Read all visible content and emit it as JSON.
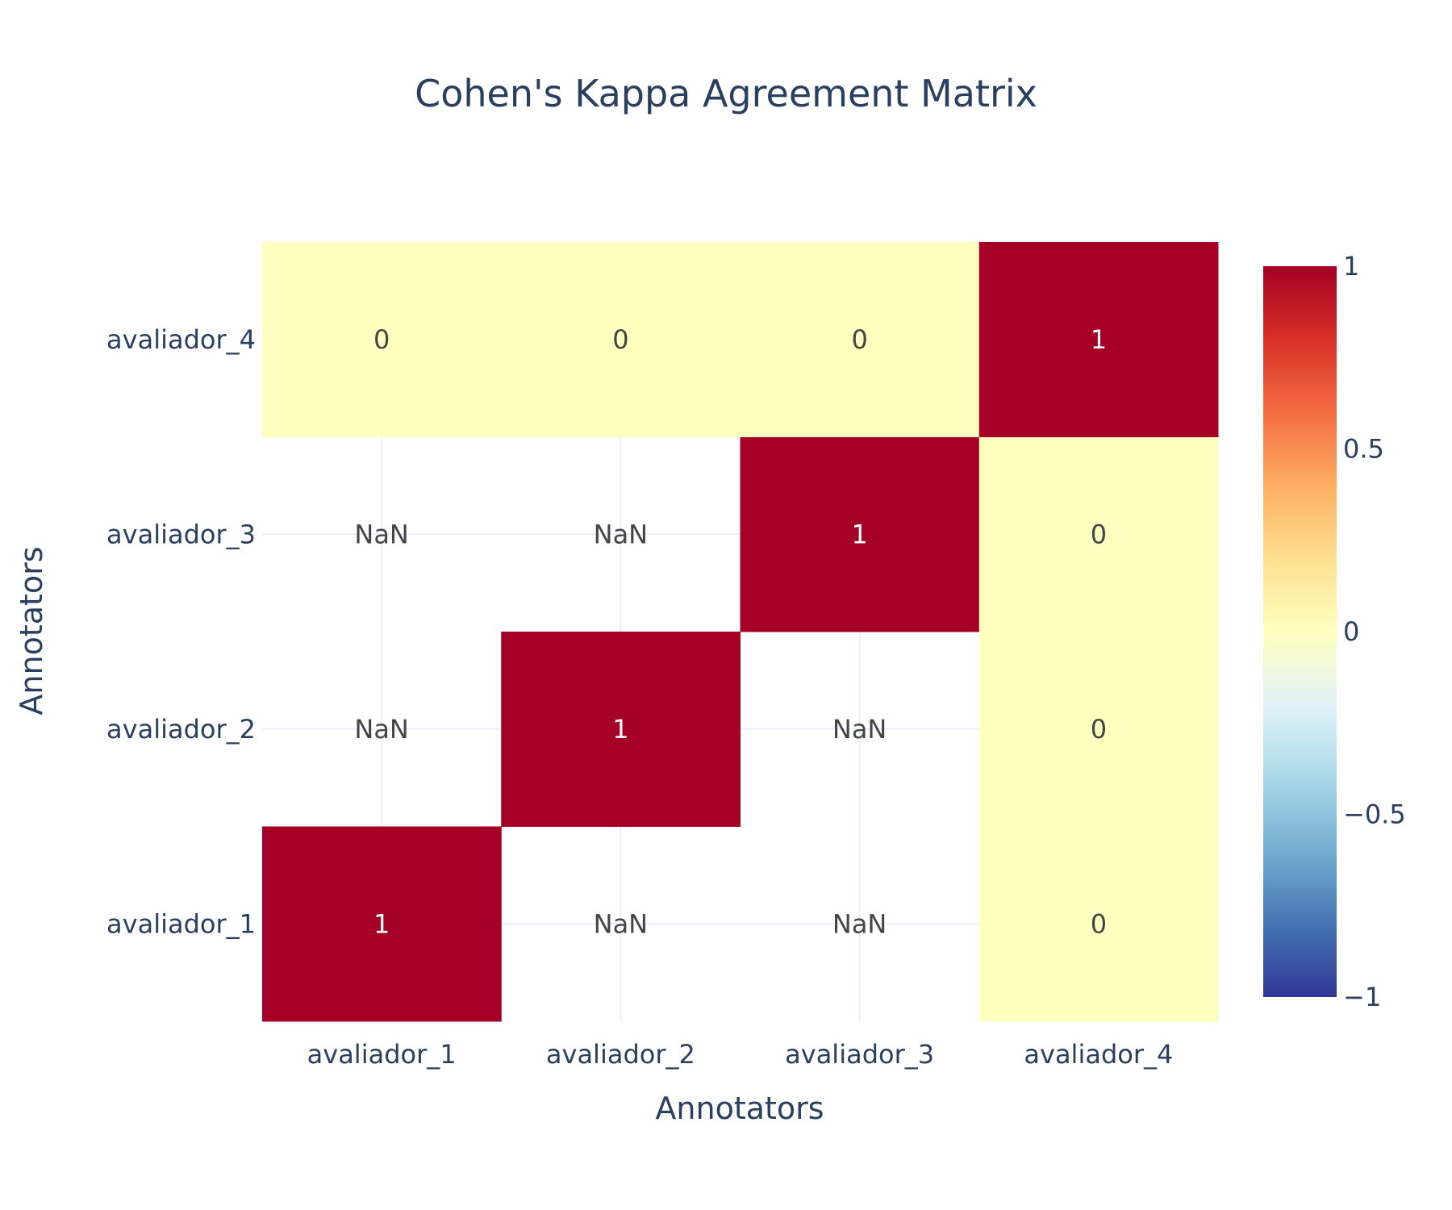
{
  "chart_data": {
    "type": "heatmap",
    "title": "Cohen's Kappa Agreement Matrix",
    "xlabel": "Annotators",
    "ylabel": "Annotators",
    "x": [
      "avaliador_1",
      "avaliador_2",
      "avaliador_3",
      "avaliador_4"
    ],
    "y": [
      "avaliador_1",
      "avaliador_2",
      "avaliador_3",
      "avaliador_4"
    ],
    "z": [
      [
        1,
        null,
        null,
        0
      ],
      [
        null,
        1,
        null,
        0
      ],
      [
        null,
        null,
        1,
        0
      ],
      [
        0,
        0,
        0,
        1
      ]
    ],
    "cell_text": [
      [
        "1",
        "NaN",
        "NaN",
        "0"
      ],
      [
        "NaN",
        "1",
        "NaN",
        "0"
      ],
      [
        "NaN",
        "NaN",
        "1",
        "0"
      ],
      [
        "0",
        "0",
        "0",
        "1"
      ]
    ],
    "zmin": -1,
    "zmax": 1,
    "colorscale": "RdYlBu (reversed)",
    "colorbar_ticks": [
      {
        "value": 1,
        "label": "1"
      },
      {
        "value": 0.5,
        "label": "0.5"
      },
      {
        "value": 0,
        "label": "0"
      },
      {
        "value": -0.5,
        "label": "−0.5"
      },
      {
        "value": -1,
        "label": "−1"
      }
    ],
    "grid": true,
    "colors": {
      "high": "#a50026",
      "zero": "#ffffbf",
      "low": "#313695",
      "grid": "#ebf0f8",
      "text_dark": "#444444",
      "text_light": "#ffffff"
    }
  }
}
